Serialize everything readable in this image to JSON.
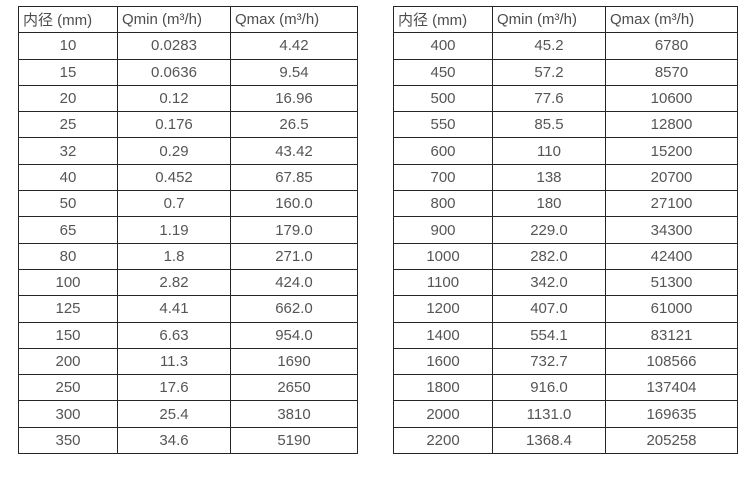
{
  "colors": {
    "background": "#ffffff",
    "border": "#262626",
    "text": "#555555"
  },
  "chart_data": [
    {
      "type": "table",
      "title": "",
      "columns": [
        "内径 (mm)",
        "Qmin (m³/h)",
        "Qmax (m³/h)"
      ],
      "rows": [
        [
          "10",
          "0.0283",
          "4.42"
        ],
        [
          "15",
          "0.0636",
          "9.54"
        ],
        [
          "20",
          "0.12",
          "16.96"
        ],
        [
          "25",
          "0.176",
          "26.5"
        ],
        [
          "32",
          "0.29",
          "43.42"
        ],
        [
          "40",
          "0.452",
          "67.85"
        ],
        [
          "50",
          "0.7",
          "160.0"
        ],
        [
          "65",
          "1.19",
          "179.0"
        ],
        [
          "80",
          "1.8",
          "271.0"
        ],
        [
          "100",
          "2.82",
          "424.0"
        ],
        [
          "125",
          "4.41",
          "662.0"
        ],
        [
          "150",
          "6.63",
          "954.0"
        ],
        [
          "200",
          "11.3",
          "1690"
        ],
        [
          "250",
          "17.6",
          "2650"
        ],
        [
          "300",
          "25.4",
          "3810"
        ],
        [
          "350",
          "34.6",
          "5190"
        ]
      ]
    },
    {
      "type": "table",
      "title": "",
      "columns": [
        "内径 (mm)",
        "Qmin (m³/h)",
        "Qmax (m³/h)"
      ],
      "rows": [
        [
          "400",
          "45.2",
          "6780"
        ],
        [
          "450",
          "57.2",
          "8570"
        ],
        [
          "500",
          "77.6",
          "10600"
        ],
        [
          "550",
          "85.5",
          "12800"
        ],
        [
          "600",
          "110",
          "15200"
        ],
        [
          "700",
          "138",
          "20700"
        ],
        [
          "800",
          "180",
          "27100"
        ],
        [
          "900",
          "229.0",
          "34300"
        ],
        [
          "1000",
          "282.0",
          "42400"
        ],
        [
          "1100",
          "342.0",
          "51300"
        ],
        [
          "1200",
          "407.0",
          "61000"
        ],
        [
          "1400",
          "554.1",
          "83121"
        ],
        [
          "1600",
          "732.7",
          "108566"
        ],
        [
          "1800",
          "916.0",
          "137404"
        ],
        [
          "2000",
          "1131.0",
          "169635"
        ],
        [
          "2200",
          "1368.4",
          "205258"
        ]
      ]
    }
  ]
}
